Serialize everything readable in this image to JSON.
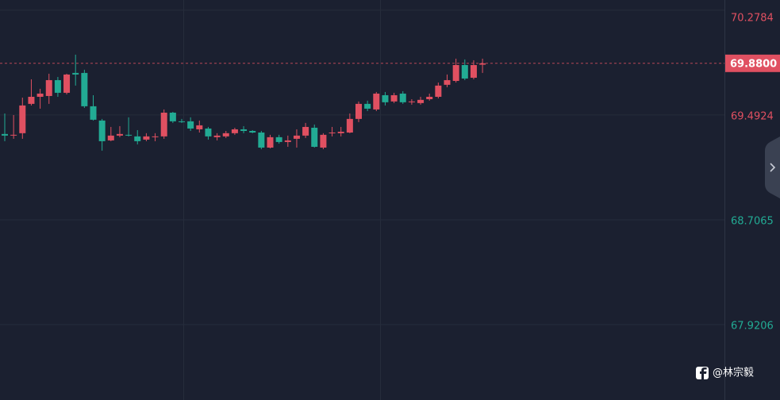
{
  "chart_data": {
    "type": "candlestick",
    "up_color": "#e05061",
    "down_color": "#22ab94",
    "open": [
      69.35,
      69.338,
      69.356,
      69.576,
      69.629,
      69.635,
      69.754,
      69.659,
      69.808,
      69.808,
      69.558,
      69.451,
      69.302,
      69.338,
      69.344,
      69.332,
      69.308,
      69.326,
      69.332,
      69.51,
      69.445,
      69.445,
      69.385,
      69.391,
      69.326,
      69.332,
      69.356,
      69.385,
      69.373,
      69.361,
      69.248,
      69.326,
      69.29,
      69.314,
      69.338,
      69.397,
      69.248,
      69.356,
      69.356,
      69.361,
      69.463,
      69.576,
      69.534,
      69.641,
      69.594,
      69.653,
      69.588,
      69.582,
      69.611,
      69.629,
      69.719,
      69.748,
      69.867,
      69.772,
      69.87
    ],
    "high": [
      69.504,
      69.492,
      69.623,
      69.76,
      69.689,
      69.802,
      69.778,
      69.802,
      69.945,
      69.832,
      69.641,
      69.463,
      69.403,
      69.409,
      69.475,
      69.379,
      69.356,
      69.356,
      69.534,
      69.516,
      69.463,
      69.475,
      69.451,
      69.403,
      69.356,
      69.373,
      69.397,
      69.409,
      69.379,
      69.373,
      69.344,
      69.344,
      69.338,
      69.385,
      69.433,
      69.421,
      69.356,
      69.403,
      69.403,
      69.504,
      69.594,
      69.6,
      69.665,
      69.665,
      69.659,
      69.671,
      69.611,
      69.629,
      69.653,
      69.736,
      69.796,
      69.915,
      69.909,
      69.903,
      69.915
    ],
    "low": [
      69.296,
      69.314,
      69.314,
      69.564,
      69.54,
      69.576,
      69.629,
      69.647,
      69.713,
      69.546,
      69.451,
      69.225,
      69.296,
      69.326,
      69.332,
      69.272,
      69.296,
      69.296,
      69.314,
      69.433,
      69.433,
      69.373,
      69.361,
      69.308,
      69.302,
      69.32,
      69.344,
      69.356,
      69.356,
      69.236,
      69.242,
      69.278,
      69.254,
      69.248,
      69.32,
      69.248,
      69.236,
      69.332,
      69.332,
      69.356,
      69.439,
      69.522,
      69.522,
      69.564,
      69.582,
      69.576,
      69.57,
      69.57,
      69.6,
      69.617,
      69.701,
      69.736,
      69.754,
      69.76,
      69.808
    ],
    "close": [
      69.338,
      69.344,
      69.564,
      69.629,
      69.653,
      69.754,
      69.659,
      69.796,
      69.796,
      69.558,
      69.457,
      69.296,
      69.338,
      69.35,
      69.338,
      69.296,
      69.332,
      69.332,
      69.51,
      69.445,
      69.439,
      69.391,
      69.415,
      69.332,
      69.338,
      69.356,
      69.385,
      69.373,
      69.361,
      69.248,
      69.326,
      69.29,
      69.302,
      69.338,
      69.403,
      69.254,
      69.344,
      69.361,
      69.367,
      69.463,
      69.576,
      69.54,
      69.653,
      69.588,
      69.641,
      69.588,
      69.594,
      69.606,
      69.629,
      69.713,
      69.754,
      69.867,
      69.766,
      69.867,
      69.88
    ],
    "ylim": [
      67.355,
      70.355
    ],
    "yticks": [
      70.2784,
      69.4924,
      68.7065,
      67.9206
    ],
    "ytick_colors": [
      "#e05061",
      "#e05061",
      "#22ab94",
      "#22ab94"
    ],
    "grid": true,
    "last_price": {
      "value": 69.88,
      "label": "69.8800"
    },
    "watermark": "@林宗毅"
  }
}
